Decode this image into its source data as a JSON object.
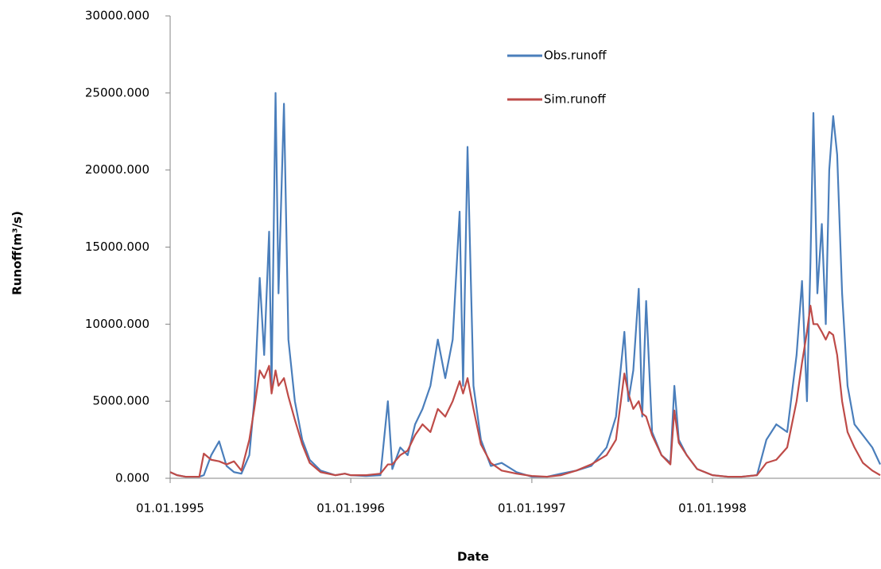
{
  "chart_data": {
    "type": "line",
    "x_label": "Date",
    "y_label": "Runoff(m³/s)",
    "x": [
      "01.01.1995",
      "15.01.1995",
      "01.02.1995",
      "15.02.1995",
      "01.03.1995",
      "10.03.1995",
      "25.03.1995",
      "10.04.1995",
      "25.04.1995",
      "10.05.1995",
      "25.05.1995",
      "10.06.1995",
      "20.06.1995",
      "01.07.1995",
      "10.07.1995",
      "20.07.1995",
      "25.07.1995",
      "02.08.1995",
      "08.08.1995",
      "19.08.1995",
      "28.08.1995",
      "10.09.1995",
      "25.09.1995",
      "10.10.1995",
      "01.11.1995",
      "01.12.1995",
      "20.12.1995",
      "01.01.1996",
      "01.02.1996",
      "01.03.1996",
      "16.03.1996",
      "25.03.1996",
      "10.04.1996",
      "25.04.1996",
      "10.05.1996",
      "25.05.1996",
      "10.06.1996",
      "25.06.1996",
      "10.07.1996",
      "25.07.1996",
      "08.08.1996",
      "15.08.1996",
      "24.08.1996",
      "05.09.1996",
      "20.09.1996",
      "10.10.1996",
      "01.11.1996",
      "01.12.1996",
      "01.01.1997",
      "01.02.1997",
      "01.03.1997",
      "01.04.1997",
      "01.05.1997",
      "01.06.1997",
      "20.06.1997",
      "07.07.1997",
      "15.07.1997",
      "25.07.1997",
      "05.08.1997",
      "12.08.1997",
      "20.08.1997",
      "01.09.1997",
      "20.09.1997",
      "08.10.1997",
      "16.10.1997",
      "25.10.1997",
      "10.11.1997",
      "01.12.1997",
      "01.01.1998",
      "01.02.1998",
      "01.03.1998",
      "01.04.1998",
      "20.04.1998",
      "10.05.1998",
      "01.06.1998",
      "20.06.1998",
      "01.07.1998",
      "11.07.1998",
      "18.07.1998",
      "24.07.1998",
      "01.08.1998",
      "10.08.1998",
      "18.08.1998",
      "25.08.1998",
      "02.09.1998",
      "10.09.1998",
      "20.09.1998",
      "01.10.1998",
      "15.10.1998",
      "01.11.1998",
      "20.11.1998",
      "06.12.1998"
    ],
    "series": [
      {
        "name": "Obs.runoff",
        "color": "#4a7ebb",
        "values": [
          400,
          200,
          100,
          100,
          100,
          200,
          1500,
          2400,
          800,
          400,
          300,
          1500,
          5000,
          13000,
          8000,
          16000,
          6000,
          25000,
          12000,
          24300,
          9000,
          5000,
          2500,
          1200,
          500,
          200,
          300,
          200,
          150,
          200,
          5000,
          600,
          2000,
          1500,
          3500,
          4500,
          6000,
          9000,
          6500,
          9000,
          17300,
          6000,
          21500,
          6000,
          2500,
          800,
          1000,
          400,
          100,
          100,
          300,
          500,
          800,
          2000,
          4000,
          9500,
          5000,
          7000,
          12300,
          4000,
          11500,
          3000,
          1500,
          1000,
          6000,
          2500,
          1500,
          600,
          200,
          100,
          100,
          200,
          2500,
          3500,
          3000,
          8000,
          12800,
          5000,
          14000,
          23700,
          12000,
          16500,
          10000,
          20000,
          23500,
          21000,
          12000,
          6000,
          3500,
          2800,
          2000,
          900
        ]
      },
      {
        "name": "Sim.runoff",
        "color": "#be4b48",
        "values": [
          400,
          200,
          100,
          100,
          100,
          1600,
          1200,
          1100,
          900,
          1100,
          500,
          2500,
          4500,
          7000,
          6500,
          7300,
          5500,
          7000,
          6000,
          6500,
          5300,
          3800,
          2200,
          1000,
          400,
          200,
          300,
          200,
          200,
          300,
          900,
          900,
          1500,
          1800,
          2800,
          3500,
          3000,
          4500,
          4000,
          5000,
          6300,
          5500,
          6500,
          4500,
          2200,
          1000,
          500,
          300,
          150,
          100,
          200,
          500,
          900,
          1500,
          2500,
          6800,
          5500,
          4500,
          5000,
          4200,
          4000,
          2800,
          1500,
          900,
          4400,
          2300,
          1500,
          600,
          200,
          100,
          100,
          200,
          1000,
          1200,
          2000,
          5000,
          7500,
          9500,
          11200,
          10000,
          10000,
          9500,
          9000,
          9500,
          9300,
          8000,
          5000,
          3000,
          2000,
          1000,
          500,
          200
        ]
      }
    ],
    "xlim": [
      "01.01.1995",
      "06.12.1998"
    ],
    "xticks": [
      "01.01.1995",
      "01.01.1996",
      "01.01.1997",
      "01.01.1998"
    ],
    "ylim": [
      0,
      30000
    ],
    "yticks": [
      {
        "value": 0,
        "label": "0.000"
      },
      {
        "value": 5000,
        "label": "5000.000"
      },
      {
        "value": 10000,
        "label": "10000.000"
      },
      {
        "value": 15000,
        "label": "15000.000"
      },
      {
        "value": 20000,
        "label": "20000.000"
      },
      {
        "value": 25000,
        "label": "25000.000"
      },
      {
        "value": 30000,
        "label": "30000.000"
      }
    ],
    "grid": false,
    "legend": "upper-center"
  }
}
